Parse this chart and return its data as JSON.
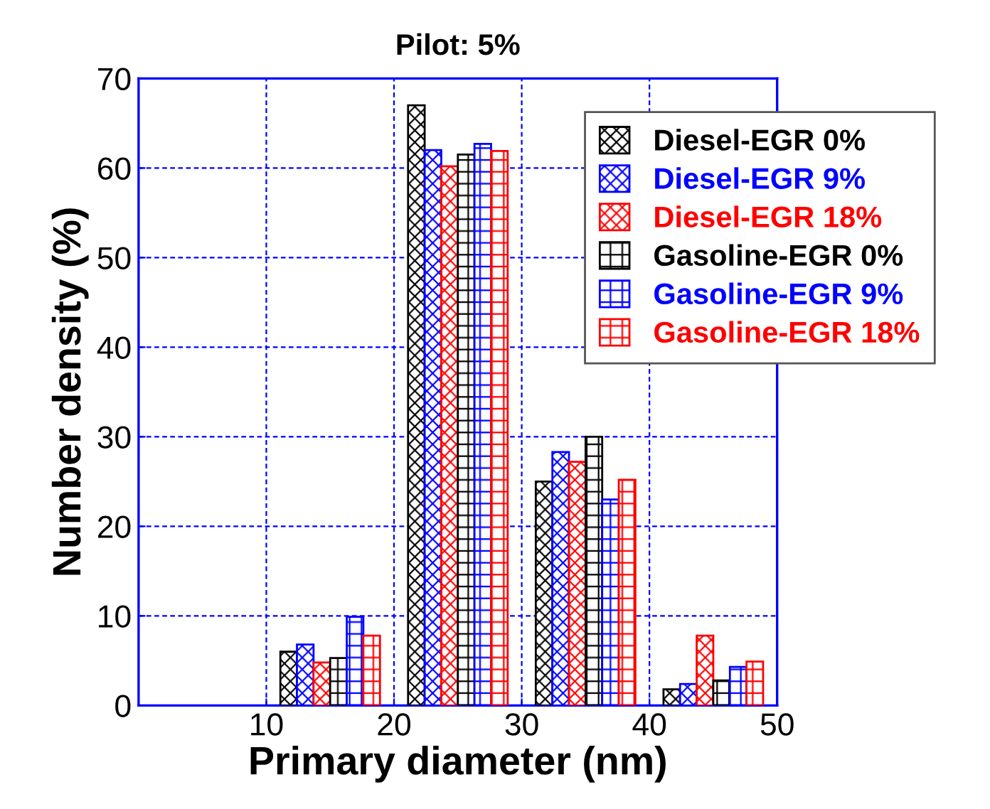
{
  "chart_data": {
    "type": "bar",
    "title": "Pilot: 5%",
    "xlabel": "Primary diameter (nm)",
    "ylabel": "Number density (%)",
    "x": [
      15,
      25,
      35,
      45
    ],
    "xlim": [
      0,
      50
    ],
    "xticks": [
      10,
      20,
      30,
      40,
      50
    ],
    "ylim": [
      0,
      70
    ],
    "yticks": [
      0,
      10,
      20,
      30,
      40,
      50,
      60,
      70
    ],
    "grid": true,
    "legend": "top right",
    "series": [
      {
        "name": "Diesel-EGR 0%",
        "color": "#000000",
        "values": [
          6.0,
          67.0,
          25.0,
          1.8
        ]
      },
      {
        "name": "Diesel-EGR 9%",
        "color": "#0000ff",
        "values": [
          6.8,
          62.0,
          28.3,
          2.4
        ]
      },
      {
        "name": "Diesel-EGR 18%",
        "color": "#ff0000",
        "values": [
          4.8,
          60.2,
          27.2,
          7.8
        ]
      },
      {
        "name": "Gasoline-EGR 0%",
        "color": "#000000",
        "values": [
          5.3,
          61.5,
          30.0,
          2.8
        ]
      },
      {
        "name": "Gasoline-EGR 9%",
        "color": "#0000ff",
        "values": [
          9.9,
          62.7,
          23.0,
          4.3
        ]
      },
      {
        "name": "Gasoline-EGR 18%",
        "color": "#ff0000",
        "values": [
          7.8,
          61.9,
          25.2,
          4.9
        ]
      }
    ]
  }
}
